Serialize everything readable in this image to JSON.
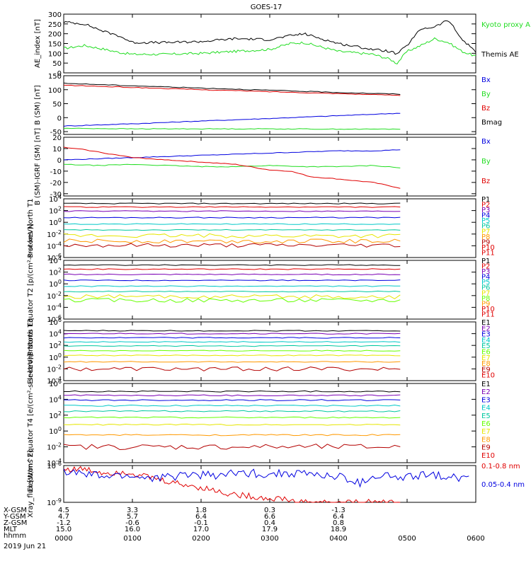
{
  "title": "GOES-17",
  "colors": {
    "black": "#000000",
    "green": "#22dd22",
    "blue": "#0000e0",
    "red": "#e00000",
    "purple": "#7b00b4",
    "cyan": "#00c8c8",
    "teal": "#00c8a0",
    "yellow": "#e6e600",
    "orange": "#ff9900",
    "lightgreen": "#66ff00",
    "darkred": "#b40000"
  },
  "time_axis": {
    "ticks": [
      "0000",
      "0100",
      "0200",
      "0300",
      "0400",
      "0500",
      "0600"
    ],
    "date": "2019 Jun 21",
    "data_end_hour": 4.9
  },
  "ephemeris": {
    "labels": [
      "X-GSM",
      "Y-GSM",
      "Z-GSM",
      "MLT",
      "hhmm"
    ],
    "columns": [
      [
        "4.5",
        "4.7",
        "-1.2",
        "15.0"
      ],
      [
        "3.3",
        "5.7",
        "-0.6",
        "16.0"
      ],
      [
        "1.8",
        "6.4",
        "-0.1",
        "17.0"
      ],
      [
        "0.3",
        "6.6",
        "0.4",
        "17.9"
      ],
      [
        "-1.3",
        "6.4",
        "0.8",
        "18.9"
      ]
    ]
  },
  "chart_data": [
    {
      "type": "line",
      "ylabel": "AE_index [nT]",
      "ylim": [
        0,
        300
      ],
      "yticks": [
        "0",
        "50",
        "100",
        "150",
        "200",
        "250",
        "300"
      ],
      "series": [
        {
          "name": "Kyoto proxy AE",
          "color": "green",
          "x": [
            0,
            0.3,
            0.6,
            0.8,
            1.0,
            1.5,
            2.0,
            2.5,
            3.0,
            3.3,
            3.5,
            4.0,
            4.5,
            4.75,
            4.85,
            5.0,
            5.2,
            5.4,
            5.6,
            5.8,
            6.0
          ],
          "y": [
            125,
            140,
            120,
            105,
            95,
            95,
            100,
            110,
            120,
            150,
            155,
            110,
            95,
            70,
            48,
            110,
            140,
            175,
            155,
            110,
            85
          ]
        },
        {
          "name": "Themis AE",
          "color": "black",
          "x": [
            0,
            0.3,
            0.6,
            0.8,
            1.0,
            1.5,
            2.0,
            2.5,
            3.0,
            3.3,
            3.5,
            4.0,
            4.5,
            4.75,
            4.85,
            5.0,
            5.2,
            5.4,
            5.6,
            5.8,
            6.0
          ],
          "y": [
            260,
            250,
            210,
            190,
            155,
            155,
            160,
            175,
            170,
            190,
            200,
            150,
            120,
            110,
            95,
            140,
            225,
            235,
            270,
            170,
            110
          ]
        }
      ]
    },
    {
      "type": "line",
      "ylabel": "B (SM) [nT]",
      "ylim": [
        -60,
        150
      ],
      "yticks": [
        "-50",
        "0",
        "50",
        "100",
        "150"
      ],
      "series": [
        {
          "name": "Bx",
          "color": "blue",
          "x": [
            0,
            1,
            2,
            3,
            4,
            4.9
          ],
          "y": [
            -30,
            -22,
            -12,
            -3,
            7,
            16
          ]
        },
        {
          "name": "By",
          "color": "green",
          "x": [
            0,
            1,
            2,
            3,
            4,
            4.9
          ],
          "y": [
            -38,
            -40,
            -40,
            -40,
            -41,
            -41
          ]
        },
        {
          "name": "Bz",
          "color": "red",
          "x": [
            0,
            1,
            2,
            3,
            4,
            4.9
          ],
          "y": [
            116,
            108,
            100,
            93,
            86,
            80
          ]
        },
        {
          "name": "Bmag",
          "color": "black",
          "x": [
            0,
            1,
            2,
            3,
            4,
            4.9
          ],
          "y": [
            123,
            114,
            106,
            98,
            90,
            84
          ]
        }
      ]
    },
    {
      "type": "line",
      "ylabel": "B (SM)-IGRF (SM) [nT]",
      "ylim": [
        -32,
        20
      ],
      "yticks": [
        "-30",
        "-20",
        "-10",
        "0",
        "10",
        "20"
      ],
      "series": [
        {
          "name": "Bx",
          "color": "blue",
          "x": [
            0,
            0.5,
            1,
            1.5,
            2,
            2.5,
            3,
            3.5,
            4,
            4.5,
            4.9
          ],
          "y": [
            0,
            1,
            2,
            3,
            4,
            5,
            6,
            7,
            8,
            8,
            9
          ]
        },
        {
          "name": "By",
          "color": "green",
          "x": [
            0,
            0.5,
            1,
            1.5,
            2,
            2.5,
            3,
            3.5,
            4,
            4.5,
            4.9
          ],
          "y": [
            -4,
            -5,
            -4,
            -5,
            -6,
            -6,
            -5,
            -6,
            -6,
            -5,
            -7
          ]
        },
        {
          "name": "Bz",
          "color": "red",
          "x": [
            0,
            0.3,
            0.7,
            1,
            1.5,
            2,
            2.5,
            3,
            3.3,
            3.6,
            4,
            4.5,
            4.9
          ],
          "y": [
            11,
            9,
            5,
            2,
            0,
            -2,
            -4,
            -9,
            -10,
            -15,
            -17,
            -20,
            -25
          ]
        }
      ]
    },
    {
      "type": "line",
      "ylabel": "Protons North T1",
      "ylim": [
        -6,
        4
      ],
      "log": true,
      "yticks": [
        "10^-6",
        "10^-4",
        "10^-2",
        "10^0",
        "10^2",
        "10^4"
      ],
      "series": [
        {
          "name": "P1",
          "color": "black",
          "level": 3.2
        },
        {
          "name": "P2",
          "color": "red",
          "level": 2.6
        },
        {
          "name": "P3",
          "color": "purple",
          "level": 1.9
        },
        {
          "name": "P4",
          "color": "blue",
          "level": 0.8
        },
        {
          "name": "P5",
          "color": "cyan",
          "level": -0.3
        },
        {
          "name": "P6",
          "color": "teal",
          "level": -1.3
        },
        {
          "name": "P7",
          "color": "yellow",
          "level": -2.3
        },
        {
          "name": "P8",
          "color": "orange",
          "level": -3.2
        },
        {
          "name": "P9",
          "color": "darkred",
          "level": -3.9
        },
        {
          "name": "P10",
          "color": "red",
          "level": null
        },
        {
          "name": "P11",
          "color": "red",
          "level": null
        }
      ]
    },
    {
      "type": "line",
      "ylabel": "Protons Equator T2 [p/(cm²-s-sr-keV)]",
      "ylim": [
        -6,
        4
      ],
      "log": true,
      "yticks": [
        "10^-6",
        "10^-4",
        "10^-2",
        "10^0",
        "10^2",
        "10^4"
      ],
      "series": [
        {
          "name": "P1",
          "color": "black",
          "level": 3.2
        },
        {
          "name": "P2",
          "color": "red",
          "level": 2.5
        },
        {
          "name": "P3",
          "color": "purple",
          "level": 1.6
        },
        {
          "name": "P4",
          "color": "blue",
          "level": 0.6
        },
        {
          "name": "P5",
          "color": "cyan",
          "level": -0.4
        },
        {
          "name": "P6",
          "color": "teal",
          "level": -1.3
        },
        {
          "name": "P7",
          "color": "yellow",
          "level": -2.2
        },
        {
          "name": "P8",
          "color": "lightgreen",
          "level": -2.8
        },
        {
          "name": "P9",
          "color": "orange",
          "level": null
        },
        {
          "name": "P10",
          "color": "red",
          "level": null
        },
        {
          "name": "P11",
          "color": "red",
          "level": null
        }
      ]
    },
    {
      "type": "line",
      "ylabel": "Electrons North T3",
      "ylim": [
        -4,
        6
      ],
      "log": true,
      "yticks": [
        "10^-4",
        "10^-2",
        "10^0",
        "10^2",
        "10^4",
        "10^6"
      ],
      "series": [
        {
          "name": "E1",
          "color": "black",
          "level": 4.5
        },
        {
          "name": "E2",
          "color": "purple",
          "level": 4.0
        },
        {
          "name": "E3",
          "color": "blue",
          "level": 3.3
        },
        {
          "name": "E4",
          "color": "cyan",
          "level": 2.6
        },
        {
          "name": "E5",
          "color": "teal",
          "level": 1.9
        },
        {
          "name": "E6",
          "color": "lightgreen",
          "level": 1.1
        },
        {
          "name": "E7",
          "color": "yellow",
          "level": 0.3
        },
        {
          "name": "E8",
          "color": "orange",
          "level": -0.8
        },
        {
          "name": "E9",
          "color": "darkred",
          "level": -2.0
        },
        {
          "name": "E10",
          "color": "red",
          "level": null
        }
      ]
    },
    {
      "type": "line",
      "ylabel": "Electrons Equator T4 [e/(cm²-s-sr-keV)]",
      "ylim": [
        -4,
        6
      ],
      "log": true,
      "yticks": [
        "10^-4",
        "10^-2",
        "10^0",
        "10^2",
        "10^4",
        "10^6"
      ],
      "series": [
        {
          "name": "E1",
          "color": "black",
          "level": 5.0
        },
        {
          "name": "E2",
          "color": "purple",
          "level": 4.5
        },
        {
          "name": "E3",
          "color": "blue",
          "level": 3.9
        },
        {
          "name": "E4",
          "color": "cyan",
          "level": 3.2
        },
        {
          "name": "E5",
          "color": "teal",
          "level": 2.5
        },
        {
          "name": "E6",
          "color": "lightgreen",
          "level": 1.7
        },
        {
          "name": "E7",
          "color": "yellow",
          "level": 0.8
        },
        {
          "name": "E8",
          "color": "orange",
          "level": -0.5
        },
        {
          "name": "E9",
          "color": "darkred",
          "level": -2.0
        },
        {
          "name": "E10",
          "color": "red",
          "level": null
        }
      ]
    },
    {
      "type": "line",
      "ylabel": "Xray_flux [W/m^2]",
      "ylim": [
        -9,
        -6
      ],
      "log": true,
      "yticks": [
        "10^-9",
        "10^-6"
      ],
      "series": [
        {
          "name": "0.1-0.8 nm",
          "color": "red",
          "x": [
            0,
            0.3,
            0.6,
            0.9,
            1.2,
            1.5,
            1.8,
            2.1,
            2.4,
            2.7,
            3.0,
            3.2,
            3.4,
            3.6,
            3.8,
            4.0,
            4.2,
            4.4,
            4.6,
            4.8,
            4.9
          ],
          "y": [
            -6.3,
            -6.3,
            -6.6,
            -6.5,
            -6.9,
            -7.3,
            -7.6,
            -7.9,
            -8.3,
            -8.5,
            -8.7,
            -8.7,
            -9,
            -9,
            -9,
            -9,
            -9,
            -9,
            -9,
            -9,
            -9
          ]
        },
        {
          "name": "0.05-0.4 nm",
          "color": "blue",
          "x": [
            0,
            0.3,
            0.6,
            0.9,
            1.2,
            1.5,
            1.8,
            2.1,
            2.4,
            2.7,
            3.0,
            3.3,
            3.6,
            3.9,
            4.1,
            4.3,
            4.5,
            4.7,
            4.9,
            5.1,
            5.4,
            5.7,
            5.9
          ],
          "y": [
            -6.5,
            -6.7,
            -6.9,
            -6.8,
            -7.0,
            -7.0,
            -6.7,
            -6.8,
            -6.7,
            -6.6,
            -6.7,
            -6.6,
            -6.7,
            -6.9,
            -7.0,
            -7.5,
            -6.9,
            -6.8,
            -7.1,
            -6.9,
            -6.7,
            -7.0,
            -6.9
          ]
        }
      ]
    }
  ]
}
